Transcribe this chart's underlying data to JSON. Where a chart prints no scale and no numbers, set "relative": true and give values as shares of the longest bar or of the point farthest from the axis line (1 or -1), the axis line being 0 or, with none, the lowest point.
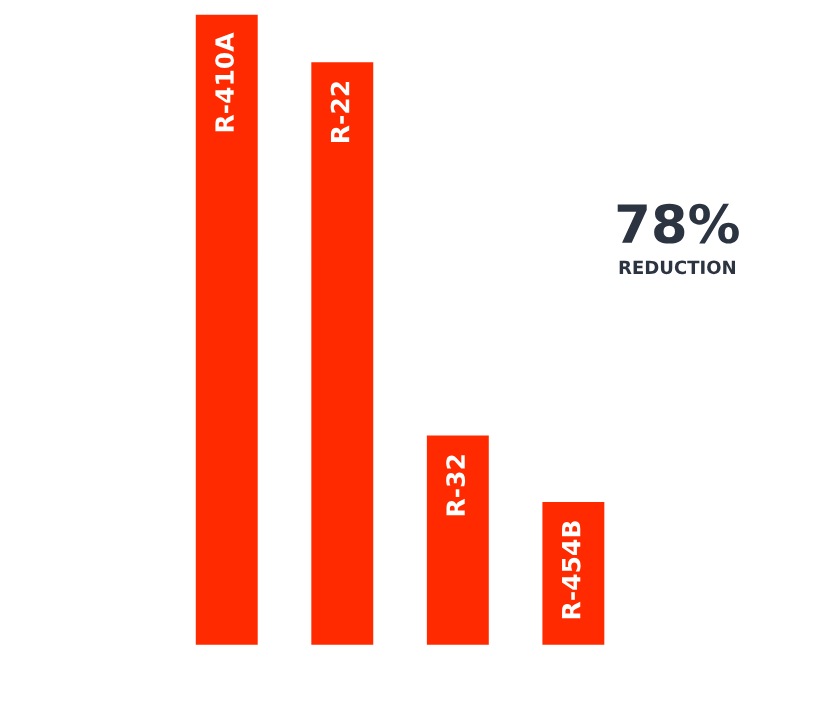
{
  "chart_data": {
    "type": "bar",
    "relative": true,
    "categories": [
      "R-410A",
      "R-22",
      "R-32",
      "R-454B"
    ],
    "values": [
      1,
      0.925,
      0.335,
      0.23
    ],
    "color": "#ff2a00",
    "annotations": [
      "78%",
      "REDUCTION"
    ]
  }
}
